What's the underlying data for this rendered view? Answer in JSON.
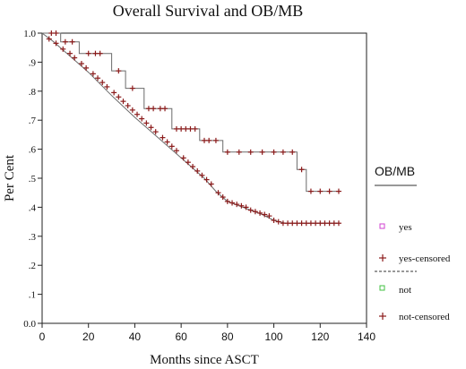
{
  "chart_data": {
    "type": "line",
    "title": "Overall Survival and OB/MB",
    "xlabel": "Months since ASCT",
    "ylabel": "Per Cent",
    "xlim": [
      0,
      140
    ],
    "ylim": [
      0,
      1
    ],
    "x_ticks": [
      "0",
      "20",
      "40",
      "60",
      "80",
      "100",
      "120",
      "140"
    ],
    "y_ticks": [
      "0.0",
      ".1",
      ".2",
      ".3",
      ".4",
      ".5",
      ".6",
      ".7",
      ".8",
      ".9",
      "1.0"
    ],
    "grid": false,
    "legend": {
      "title": "OB/MB",
      "position": "right",
      "entries": [
        "yes",
        "yes-censored",
        "not",
        "not-censored"
      ]
    },
    "series": [
      {
        "name": "yes",
        "color": "#6b6b6b",
        "x": [
          0,
          8,
          8,
          16,
          16,
          30,
          30,
          36,
          36,
          44,
          44,
          56,
          56,
          68,
          68,
          78,
          78,
          110,
          110,
          114,
          114,
          128
        ],
        "y": [
          1.0,
          1.0,
          0.97,
          0.97,
          0.93,
          0.93,
          0.87,
          0.87,
          0.81,
          0.81,
          0.74,
          0.74,
          0.67,
          0.67,
          0.63,
          0.63,
          0.59,
          0.59,
          0.53,
          0.53,
          0.455,
          0.455
        ]
      },
      {
        "name": "yes-censored",
        "color": "#8b1a1a",
        "x": [
          4,
          6,
          10,
          13,
          20,
          23,
          25,
          33,
          39,
          46,
          48,
          51,
          53,
          58,
          60,
          62,
          64,
          66,
          70,
          72,
          75,
          80,
          85,
          90,
          95,
          100,
          104,
          108,
          112,
          116,
          120,
          124,
          128
        ],
        "y": [
          1.0,
          1.0,
          0.97,
          0.97,
          0.93,
          0.93,
          0.93,
          0.87,
          0.81,
          0.74,
          0.74,
          0.74,
          0.74,
          0.67,
          0.67,
          0.67,
          0.67,
          0.67,
          0.63,
          0.63,
          0.63,
          0.59,
          0.59,
          0.59,
          0.59,
          0.59,
          0.59,
          0.59,
          0.53,
          0.455,
          0.455,
          0.455,
          0.455
        ]
      },
      {
        "name": "not",
        "color": "#6b6b6b",
        "x": [
          0,
          5,
          10,
          15,
          20,
          30,
          40,
          50,
          60,
          70,
          75,
          80,
          85,
          90,
          95,
          100,
          105,
          128
        ],
        "y": [
          1.0,
          0.97,
          0.935,
          0.9,
          0.865,
          0.785,
          0.71,
          0.64,
          0.57,
          0.5,
          0.455,
          0.42,
          0.405,
          0.39,
          0.375,
          0.355,
          0.345,
          0.345
        ]
      },
      {
        "name": "not-censored",
        "color": "#8b1a1a",
        "x": [
          3,
          6,
          9,
          12,
          14,
          17,
          19,
          22,
          24,
          26,
          28,
          31,
          33,
          35,
          37,
          39,
          41,
          43,
          45,
          47,
          49,
          52,
          54,
          56,
          58,
          61,
          63,
          65,
          67,
          69,
          71,
          73,
          76,
          78,
          80,
          82,
          84,
          86,
          88,
          90,
          92,
          94,
          96,
          98,
          100,
          102,
          104,
          106,
          108,
          110,
          112,
          114,
          116,
          118,
          120,
          122,
          124,
          126,
          128
        ],
        "y": [
          0.98,
          0.965,
          0.945,
          0.93,
          0.915,
          0.895,
          0.88,
          0.86,
          0.845,
          0.83,
          0.815,
          0.795,
          0.78,
          0.765,
          0.75,
          0.735,
          0.72,
          0.705,
          0.69,
          0.675,
          0.66,
          0.64,
          0.625,
          0.61,
          0.595,
          0.57,
          0.555,
          0.54,
          0.525,
          0.51,
          0.495,
          0.48,
          0.45,
          0.435,
          0.42,
          0.415,
          0.41,
          0.405,
          0.4,
          0.39,
          0.385,
          0.38,
          0.375,
          0.37,
          0.355,
          0.35,
          0.345,
          0.345,
          0.345,
          0.345,
          0.345,
          0.345,
          0.345,
          0.345,
          0.345,
          0.345,
          0.345,
          0.345,
          0.345
        ]
      }
    ]
  }
}
